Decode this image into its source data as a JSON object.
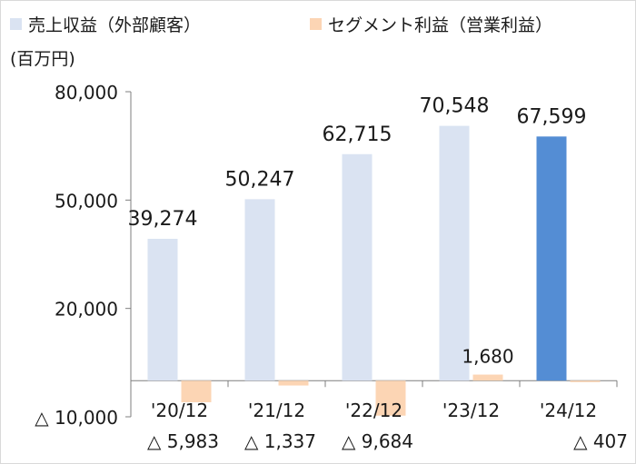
{
  "chart_data": {
    "type": "bar",
    "unit_label": "(百万円)",
    "categories": [
      "'20/12",
      "'21/12",
      "'22/12",
      "'23/12",
      "'24/12"
    ],
    "series": [
      {
        "name": "売上収益（外部顧客）",
        "values": [
          39274,
          50247,
          62715,
          70548,
          67599
        ],
        "labels": [
          "39,274",
          "50,247",
          "62,715",
          "70,548",
          "67,599"
        ],
        "color": "#dae3f2",
        "highlight_color": "#548dd4",
        "highlight_index": 4
      },
      {
        "name": "セグメント利益（営業利益）",
        "values": [
          -5983,
          -1337,
          -9684,
          1680,
          -407
        ],
        "labels": [
          "△ 5,983",
          "△ 1,337",
          "△ 9,684",
          "1,680",
          "△ 407"
        ],
        "color": "#fcd5b4"
      }
    ],
    "y_ticks": [
      {
        "value": 80000,
        "label": "80,000"
      },
      {
        "value": 50000,
        "label": "50,000"
      },
      {
        "value": 20000,
        "label": "20,000"
      },
      {
        "value": -10000,
        "label": "△ 10,000"
      }
    ],
    "ylim": [
      -10000,
      80000
    ],
    "grid": false,
    "legend": "top"
  }
}
